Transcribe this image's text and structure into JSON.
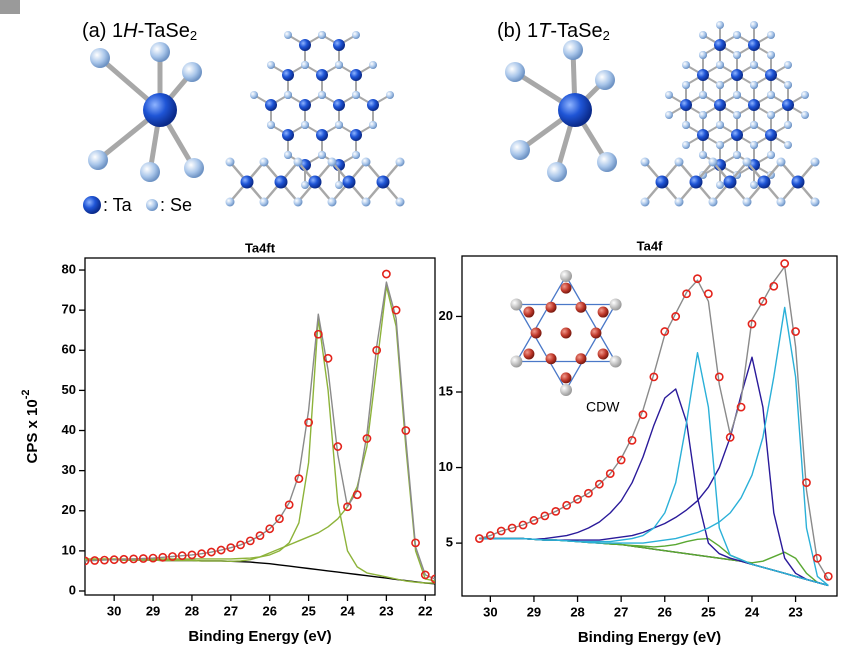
{
  "panels": [
    [
      "(a) 1",
      "H",
      "-TaSe",
      "2"
    ],
    [
      "(b) 1",
      "T",
      "-TaSe",
      "2"
    ]
  ],
  "structure_legend": [
    ": Ta",
    ": Se"
  ],
  "chart_data": [
    {
      "type": "line",
      "title": "Ta4ft",
      "xlabel": "Binding Energy (eV)",
      "ylabel": [
        "CPS x 10",
        "-2"
      ],
      "xlim": [
        30.75,
        21.75
      ],
      "ylim": [
        -1,
        83
      ],
      "xticks": [
        30,
        29,
        28,
        27,
        26,
        25,
        24,
        23,
        22
      ],
      "yticks": [
        0,
        10,
        20,
        30,
        40,
        50,
        60,
        70,
        80
      ],
      "x": [
        30.75,
        30.5,
        30.25,
        30,
        29.75,
        29.5,
        29.25,
        29,
        28.75,
        28.5,
        28.25,
        28,
        27.75,
        27.5,
        27.25,
        27,
        26.75,
        26.5,
        26.25,
        26,
        25.75,
        25.5,
        25.25,
        25,
        24.75,
        24.5,
        24.25,
        24,
        23.75,
        23.5,
        23.25,
        23,
        22.75,
        22.5,
        22.25,
        22,
        21.75
      ],
      "series": [
        {
          "color": "#000000",
          "values": [
            7.8,
            7.8,
            7.8,
            7.8,
            7.7,
            7.7,
            7.7,
            7.7,
            7.6,
            7.6,
            7.6,
            7.6,
            7.5,
            7.5,
            7.5,
            7.4,
            7.3,
            7.2,
            7,
            6.8,
            6.5,
            6.2,
            5.9,
            5.6,
            5.3,
            5,
            4.7,
            4.4,
            4.1,
            3.8,
            3.5,
            3.2,
            2.9,
            2.6,
            2.3,
            2,
            1.8
          ]
        },
        {
          "color": "#8db33a",
          "values": [
            8,
            8,
            8,
            8,
            8,
            8,
            8,
            8,
            8,
            8,
            8,
            8,
            8,
            8,
            8,
            8,
            8.1,
            8.2,
            8.5,
            9,
            10,
            12,
            17,
            32,
            68,
            50,
            22,
            10,
            6,
            4.5,
            4,
            3.5,
            3,
            2.5,
            2.2,
            2,
            2
          ]
        },
        {
          "color": "#8db33a",
          "values": [
            7.8,
            7.8,
            7.8,
            7.8,
            7.7,
            7.7,
            7.7,
            7.7,
            7.6,
            7.6,
            7.6,
            7.6,
            7.5,
            7.5,
            7.5,
            7.4,
            7.5,
            7.8,
            8.5,
            9.5,
            10.5,
            11.5,
            12.5,
            13.5,
            14.5,
            16,
            18,
            21,
            26,
            36,
            56,
            76,
            66,
            36,
            10,
            3,
            2.5
          ]
        },
        {
          "color": "#8a8a8a",
          "values": [
            7.5,
            7.6,
            7.7,
            7.8,
            7.9,
            8,
            8.1,
            8.2,
            8.4,
            8.6,
            8.8,
            9,
            9.3,
            9.7,
            10.2,
            10.8,
            11.5,
            12.5,
            13.8,
            15.5,
            18,
            22,
            29,
            45,
            69,
            55,
            34,
            21,
            25,
            39,
            61,
            77,
            68,
            38,
            11,
            4,
            3
          ]
        },
        {
          "color": "#e3231b",
          "marker": "circle",
          "values": [
            7.5,
            7.6,
            7.7,
            7.8,
            7.9,
            8,
            8.1,
            8.2,
            8.4,
            8.6,
            8.8,
            9,
            9.3,
            9.7,
            10.2,
            10.8,
            11.5,
            12.5,
            13.8,
            15.5,
            18,
            21.5,
            28,
            42,
            64,
            58,
            36,
            21,
            24,
            38,
            60,
            79,
            70,
            40,
            12,
            4,
            3
          ]
        }
      ]
    },
    {
      "type": "line",
      "title": "Ta4f",
      "xlabel": "Binding Energy (eV)",
      "annotation": "CDW",
      "xlim": [
        30.65,
        22.05
      ],
      "ylim": [
        1.5,
        24
      ],
      "xticks": [
        30,
        29,
        28,
        27,
        26,
        25,
        24,
        23
      ],
      "yticks": [
        5,
        10,
        15,
        20
      ],
      "x": [
        30.25,
        30,
        29.75,
        29.5,
        29.25,
        29,
        28.75,
        28.5,
        28.25,
        28,
        27.75,
        27.5,
        27.25,
        27,
        26.75,
        26.5,
        26.25,
        26,
        25.75,
        25.5,
        25.25,
        25,
        24.75,
        24.5,
        24.25,
        24,
        23.75,
        23.5,
        23.25,
        23,
        22.75,
        22.5,
        22.25
      ],
      "series": [
        {
          "color": "#000000",
          "values": [
            5.3,
            5.3,
            5.3,
            5.3,
            5.3,
            5.25,
            5.2,
            5.2,
            5.15,
            5.1,
            5.05,
            5,
            4.95,
            4.9,
            4.8,
            4.7,
            4.6,
            4.5,
            4.4,
            4.3,
            4.2,
            4.1,
            4,
            3.9,
            3.8,
            3.6,
            3.4,
            3.2,
            3,
            2.8,
            2.6,
            2.4,
            2.2
          ]
        },
        {
          "color": "#5aa832",
          "values": [
            5.3,
            5.3,
            5.3,
            5.3,
            5.3,
            5.25,
            5.2,
            5.2,
            5.15,
            5.1,
            5.05,
            5,
            4.95,
            4.9,
            4.85,
            4.8,
            4.75,
            4.8,
            4.9,
            5.1,
            5.25,
            5.3,
            4.8,
            4.2,
            3.9,
            3.6,
            3.4,
            3.2,
            3,
            2.8,
            2.6,
            2.4,
            2.2
          ]
        },
        {
          "color": "#5aa832",
          "values": [
            5.3,
            5.3,
            5.3,
            5.3,
            5.3,
            5.25,
            5.2,
            5.2,
            5.15,
            5.1,
            5.05,
            5,
            4.95,
            4.9,
            4.8,
            4.7,
            4.6,
            4.5,
            4.4,
            4.3,
            4.2,
            4.1,
            4,
            3.9,
            3.8,
            3.7,
            3.8,
            4.1,
            4.4,
            4,
            3,
            2.4,
            2.2
          ]
        },
        {
          "color": "#2a1a9a",
          "values": [
            5.3,
            5.3,
            5.3,
            5.3,
            5.3,
            5.25,
            5.3,
            5.4,
            5.5,
            5.7,
            6,
            6.4,
            7,
            7.8,
            9,
            10.7,
            12.8,
            14.6,
            15.2,
            13,
            8,
            5,
            4.3,
            4,
            3.8,
            3.6,
            3.4,
            3.2,
            3,
            2.8,
            2.6,
            2.4,
            2.2
          ]
        },
        {
          "color": "#2a1a9a",
          "values": [
            5.3,
            5.3,
            5.3,
            5.3,
            5.3,
            5.25,
            5.2,
            5.2,
            5.2,
            5.2,
            5.2,
            5.2,
            5.3,
            5.4,
            5.5,
            5.7,
            6,
            6.3,
            6.7,
            7.2,
            7.8,
            8.7,
            10,
            12,
            14.8,
            17.3,
            14,
            7,
            4,
            3,
            2.6,
            2.4,
            2.2
          ]
        },
        {
          "color": "#2ab0d8",
          "values": [
            5.3,
            5.3,
            5.3,
            5.3,
            5.3,
            5.25,
            5.2,
            5.2,
            5.15,
            5.1,
            5.1,
            5.1,
            5.1,
            5.2,
            5.3,
            5.5,
            6,
            7,
            9,
            13,
            17.6,
            14,
            6,
            4.2,
            3.9,
            3.6,
            3.4,
            3.2,
            3,
            2.8,
            2.6,
            2.4,
            2.2
          ]
        },
        {
          "color": "#2ab0d8",
          "values": [
            5.3,
            5.3,
            5.3,
            5.3,
            5.3,
            5.25,
            5.2,
            5.2,
            5.15,
            5.1,
            5.05,
            5,
            5,
            5,
            5,
            5,
            5.1,
            5.2,
            5.3,
            5.5,
            5.7,
            6,
            6.4,
            7,
            8,
            9.5,
            12,
            16,
            20.6,
            16,
            6,
            2.8,
            2.2
          ]
        },
        {
          "color": "#8a8a8a",
          "values": [
            5.3,
            5.5,
            5.8,
            6,
            6.2,
            6.5,
            6.8,
            7.1,
            7.5,
            7.9,
            8.3,
            8.9,
            9.6,
            10.6,
            12,
            13.8,
            16.2,
            18.8,
            20.2,
            21.6,
            22.4,
            21,
            15.5,
            12.2,
            14.5,
            19.8,
            21,
            22.3,
            23.3,
            18,
            8.5,
            3.8,
            2.6
          ]
        },
        {
          "color": "#e3231b",
          "marker": "circle",
          "values": [
            5.3,
            5.5,
            5.8,
            6,
            6.2,
            6.5,
            6.8,
            7.1,
            7.5,
            7.9,
            8.3,
            8.9,
            9.6,
            10.5,
            11.8,
            13.5,
            16,
            19,
            20,
            21.5,
            22.5,
            21.5,
            16,
            12,
            14,
            19.5,
            21,
            22,
            23.5,
            19,
            9,
            4,
            2.8
          ]
        }
      ]
    }
  ]
}
